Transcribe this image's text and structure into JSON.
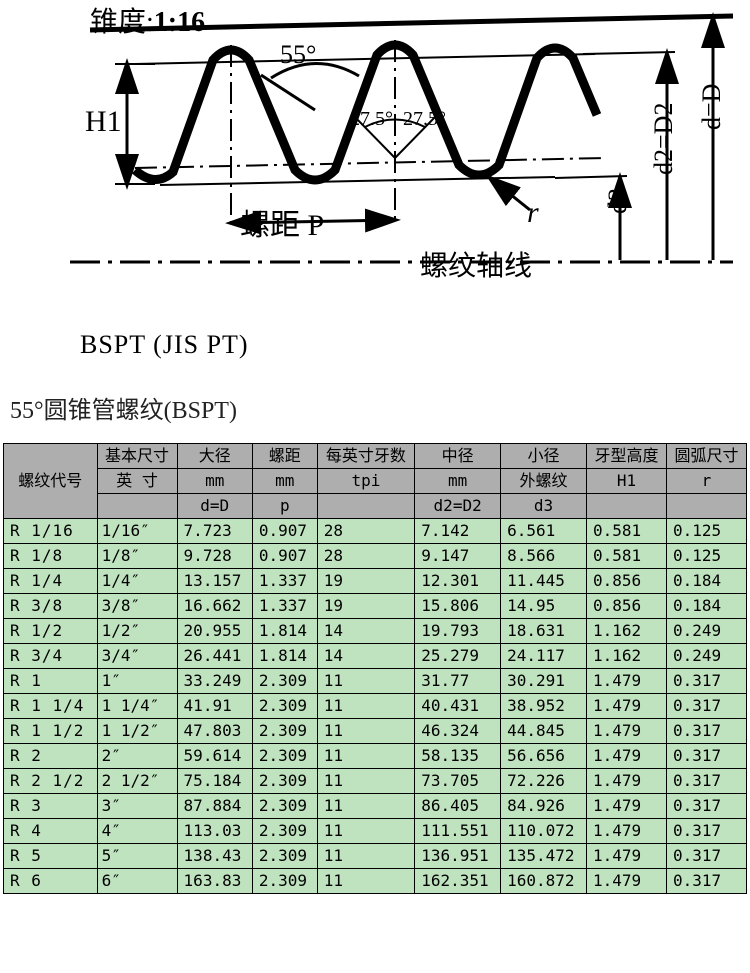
{
  "diagram": {
    "taper_label_prefix": "锥度:",
    "taper_value": "1:16",
    "angle_top": "55°",
    "half_angle_left": "27.5°",
    "half_angle_right": "27.5°",
    "H1": "H1",
    "pitch_label": "螺距  P",
    "r_label": "r",
    "d3": "d3",
    "d2D2": "d2=D2",
    "dD": "d=D",
    "axis_label": "螺纹轴线",
    "caption": "BSPT (JIS PT)",
    "colors": {
      "stroke": "#000000"
    },
    "diagram_type": "thread-profile-technical-drawing"
  },
  "section_title": "55°圆锥管螺纹(BSPT)",
  "table": {
    "header_bg": "#aeaeae",
    "row_bg": "#c0e3bf",
    "border_color": "#010101",
    "columns": [
      {
        "label": "螺纹代号",
        "sub": "",
        "sym": ""
      },
      {
        "label": "基本尺寸",
        "sub": "英 寸",
        "sym": ""
      },
      {
        "label": "大径",
        "sub": "mm",
        "sym": "d=D"
      },
      {
        "label": "螺距",
        "sub": "mm",
        "sym": "p"
      },
      {
        "label": "每英寸牙数",
        "sub": "tpi",
        "sym": ""
      },
      {
        "label": "中径",
        "sub": "mm",
        "sym": "d2=D2"
      },
      {
        "label": "小径",
        "sub": "外螺纹",
        "sym": "d3"
      },
      {
        "label": "牙型高度",
        "sub": "H1",
        "sym": ""
      },
      {
        "label": "圆弧尺寸",
        "sub": "r",
        "sym": ""
      }
    ],
    "rows": [
      [
        "R 1/16",
        "1/16″",
        "7.723",
        "0.907",
        "28",
        "7.142",
        "6.561",
        "0.581",
        "0.125"
      ],
      [
        "R 1/8",
        "1/8″",
        "9.728",
        "0.907",
        "28",
        "9.147",
        "8.566",
        "0.581",
        "0.125"
      ],
      [
        "R 1/4",
        "1/4″",
        "13.157",
        "1.337",
        "19",
        "12.301",
        "11.445",
        "0.856",
        "0.184"
      ],
      [
        "R 3/8",
        "3/8″",
        "16.662",
        "1.337",
        "19",
        "15.806",
        "14.95",
        "0.856",
        "0.184"
      ],
      [
        "R 1/2",
        "1/2″",
        "20.955",
        "1.814",
        "14",
        "19.793",
        "18.631",
        "1.162",
        "0.249"
      ],
      [
        "R 3/4",
        "3/4″",
        "26.441",
        "1.814",
        "14",
        "25.279",
        "24.117",
        "1.162",
        "0.249"
      ],
      [
        "R 1",
        "1″",
        "33.249",
        "2.309",
        "11",
        "31.77",
        "30.291",
        "1.479",
        "0.317"
      ],
      [
        "R 1 1/4",
        "1 1/4″",
        "41.91",
        "2.309",
        "11",
        "40.431",
        "38.952",
        "1.479",
        "0.317"
      ],
      [
        "R 1 1/2",
        "1 1/2″",
        "47.803",
        "2.309",
        "11",
        "46.324",
        "44.845",
        "1.479",
        "0.317"
      ],
      [
        "R 2",
        "2″",
        "59.614",
        "2.309",
        "11",
        "58.135",
        "56.656",
        "1.479",
        "0.317"
      ],
      [
        "R 2 1/2",
        "2 1/2″",
        "75.184",
        "2.309",
        "11",
        "73.705",
        "72.226",
        "1.479",
        "0.317"
      ],
      [
        "R 3",
        "3″",
        "87.884",
        "2.309",
        "11",
        "86.405",
        "84.926",
        "1.479",
        "0.317"
      ],
      [
        "R 4",
        "4″",
        "113.03",
        "2.309",
        "11",
        "111.551",
        "110.072",
        "1.479",
        "0.317"
      ],
      [
        "R 5",
        "5″",
        "138.43",
        "2.309",
        "11",
        "136.951",
        "135.472",
        "1.479",
        "0.317"
      ],
      [
        "R 6",
        "6″",
        "163.83",
        "2.309",
        "11",
        "162.351",
        "160.872",
        "1.479",
        "0.317"
      ]
    ]
  }
}
